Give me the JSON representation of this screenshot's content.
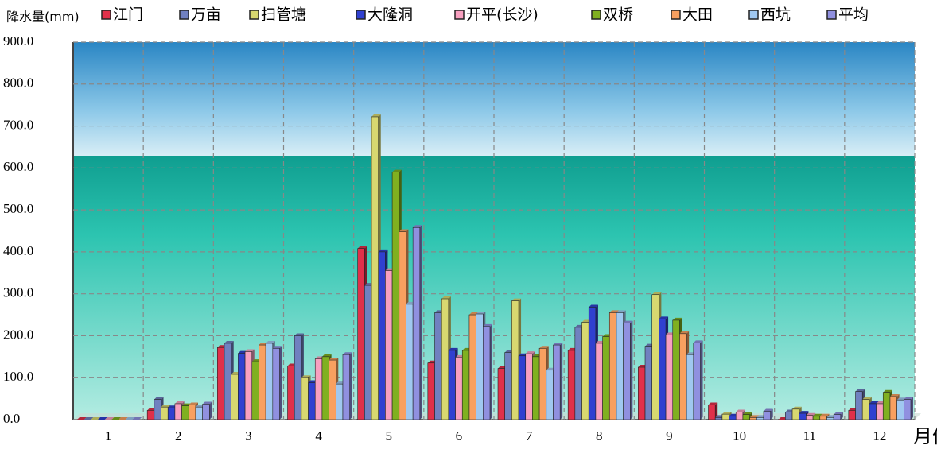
{
  "chart_data": {
    "type": "bar",
    "y_label": "降水量(mm)",
    "x_label": "月份",
    "categories": [
      "1",
      "2",
      "3",
      "4",
      "5",
      "6",
      "7",
      "8",
      "9",
      "10",
      "11",
      "12"
    ],
    "ylim": [
      0,
      900
    ],
    "yticks": [
      {
        "value": 0,
        "label": "0.0"
      },
      {
        "value": 100,
        "label": "100.0"
      },
      {
        "value": 200,
        "label": "200.0"
      },
      {
        "value": 300,
        "label": "300.0"
      },
      {
        "value": 400,
        "label": "400.0"
      },
      {
        "value": 500,
        "label": "500.0"
      },
      {
        "value": 600,
        "label": "600.0"
      },
      {
        "value": 700,
        "label": "700.0"
      },
      {
        "value": 800,
        "label": "800.0"
      },
      {
        "value": 900,
        "label": "900.0"
      }
    ],
    "grid": true,
    "series": [
      {
        "name": "江门",
        "color": "#e0304a",
        "values": [
          0,
          22,
          172,
          128,
          408,
          135,
          122,
          165,
          125,
          35,
          0,
          22
        ]
      },
      {
        "name": "万亩",
        "color": "#7080c0",
        "values": [
          0,
          48,
          182,
          200,
          320,
          255,
          160,
          220,
          175,
          5,
          18,
          67
        ]
      },
      {
        "name": "扫管塘",
        "color": "#d8d870",
        "values": [
          0,
          30,
          108,
          100,
          722,
          288,
          283,
          232,
          298,
          13,
          25,
          48
        ]
      },
      {
        "name": "大隆洞",
        "color": "#3040d0",
        "values": [
          0,
          28,
          158,
          88,
          400,
          165,
          152,
          268,
          240,
          8,
          15,
          38
        ]
      },
      {
        "name": "开平(长沙)",
        "color": "#f8a0c0",
        "values": [
          0,
          38,
          162,
          145,
          355,
          148,
          157,
          182,
          202,
          18,
          10,
          38
        ]
      },
      {
        "name": "双桥",
        "color": "#80b020",
        "values": [
          0,
          33,
          138,
          150,
          590,
          165,
          150,
          198,
          237,
          12,
          8,
          65
        ]
      },
      {
        "name": "大田",
        "color": "#f8a060",
        "values": [
          0,
          35,
          178,
          142,
          448,
          250,
          170,
          255,
          205,
          5,
          8,
          55
        ]
      },
      {
        "name": "西坑",
        "color": "#a0c8f0",
        "values": [
          0,
          30,
          182,
          85,
          275,
          252,
          118,
          255,
          155,
          5,
          5,
          47
        ]
      },
      {
        "name": "平均",
        "color": "#9090e0",
        "values": [
          0,
          37,
          170,
          155,
          458,
          222,
          178,
          230,
          183,
          20,
          12,
          48
        ]
      }
    ]
  }
}
